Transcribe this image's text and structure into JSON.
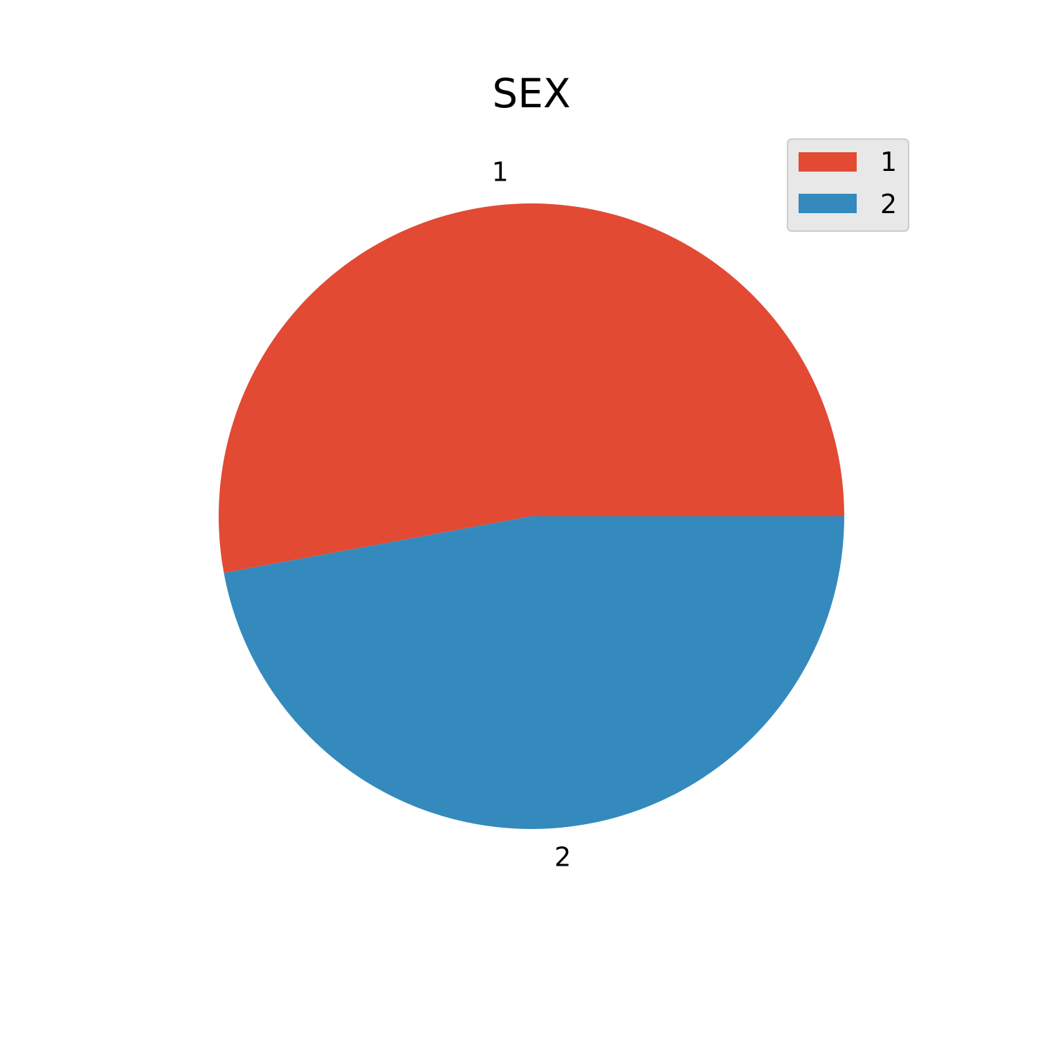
{
  "chart_data": {
    "type": "pie",
    "title": "SEX",
    "labels": [
      "1",
      "2"
    ],
    "values": [
      52.9,
      47.1
    ],
    "colors": [
      "#E24A33",
      "#348ABD"
    ],
    "start_angle_deg": 0,
    "direction": "counterclockwise",
    "legend": {
      "position": "top-right",
      "entries": [
        "1",
        "2"
      ]
    }
  }
}
